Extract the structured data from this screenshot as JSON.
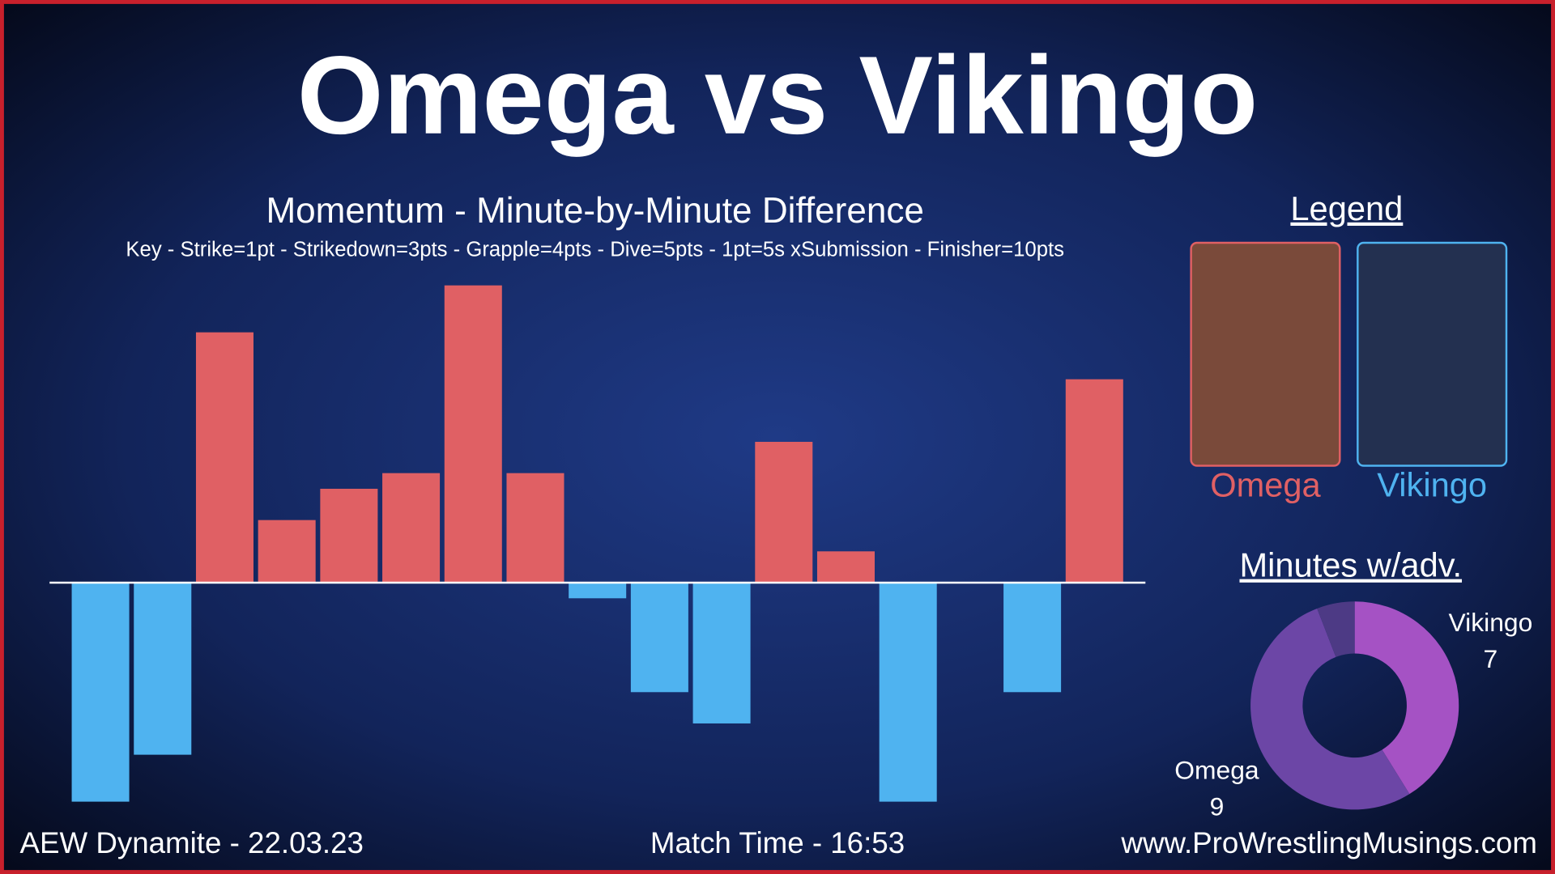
{
  "title": "Omega vs Vikingo",
  "chart_data": [
    {
      "type": "bar",
      "title": "Momentum - Minute-by-Minute Difference",
      "subtitle": "Key - Strike=1pt - Strikedown=3pts - Grapple=4pts - Dive=5pts - 1pt=5s xSubmission - Finisher=10pts",
      "values": [
        -14,
        -11,
        16,
        4,
        6,
        7,
        19,
        7,
        -1,
        -7,
        -9,
        9,
        2,
        -14,
        0,
        -7,
        13
      ],
      "color_positive": "#e06064",
      "color_negative": "#4fb3f0",
      "ylim": [
        -14,
        19
      ]
    },
    {
      "type": "pie",
      "title": "Minutes w/adv.",
      "categories": [
        "Vikingo",
        "Omega",
        null
      ],
      "values": [
        7,
        9,
        1
      ],
      "colors": [
        "#a552c4",
        "#6c46a6",
        "#4d3a85"
      ],
      "hole": 0.5
    }
  ],
  "legend": {
    "title": "Legend",
    "entries": [
      {
        "label": "Omega",
        "color": "#e06064"
      },
      {
        "label": "Vikingo",
        "color": "#4fb3f0"
      }
    ]
  },
  "footer": {
    "event": "AEW Dynamite - 22.03.23",
    "match_time": "Match Time - 16:53",
    "website": "www.ProWrestlingMusings.com"
  }
}
